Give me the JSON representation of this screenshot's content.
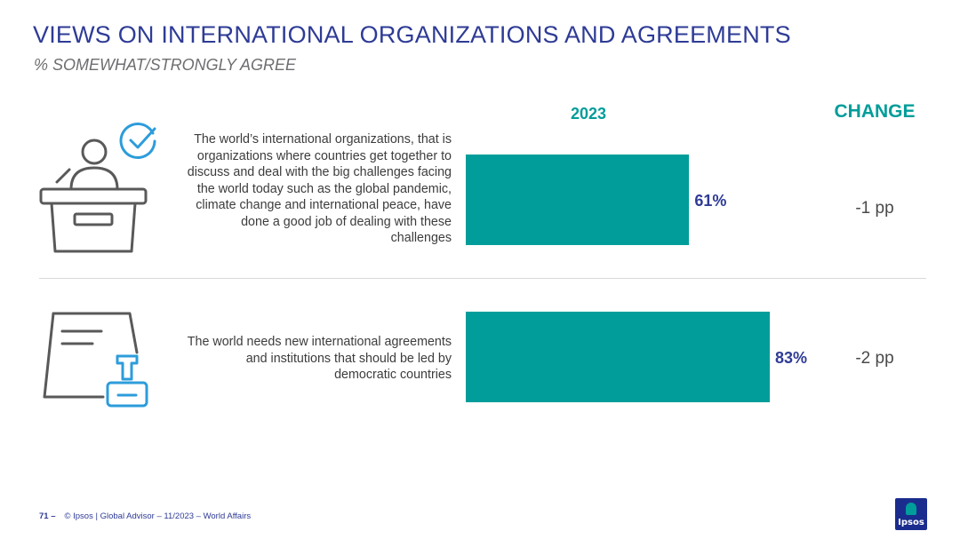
{
  "title": "VIEWS ON INTERNATIONAL ORGANIZATIONS AND AGREEMENTS",
  "subtitle": "% SOMEWHAT/STRONGLY AGREE",
  "column_headers": {
    "year": "2023",
    "change": "CHANGE"
  },
  "colors": {
    "bar": "#009D9A",
    "title": "#2E3B96",
    "header": "#009D9A",
    "icon_accent": "#2D9CDB",
    "icon_outline": "#595959"
  },
  "icons": [
    "podium-speaker-icon",
    "checkmark-circle-icon",
    "document-icon",
    "stamp-icon"
  ],
  "chart_data": {
    "type": "bar",
    "orientation": "horizontal",
    "xlim": [
      0,
      100
    ],
    "categories": [
      "The world’s international organizations, that is organizations where countries get together to discuss and deal with the big challenges facing the world today such as the global pandemic, climate change and international peace, have done a good job of dealing with these challenges",
      "The world needs new international agreements and institutions that should be led by democratic countries"
    ],
    "values": [
      61,
      83
    ],
    "value_labels": [
      "61%",
      "83%"
    ],
    "changes": [
      "-1 pp",
      "-2 pp"
    ]
  },
  "footer": {
    "page": "71 –",
    "text": "© Ipsos | Global Advisor – 11/2023 – World Affairs"
  },
  "logo_text": "Ipsos"
}
